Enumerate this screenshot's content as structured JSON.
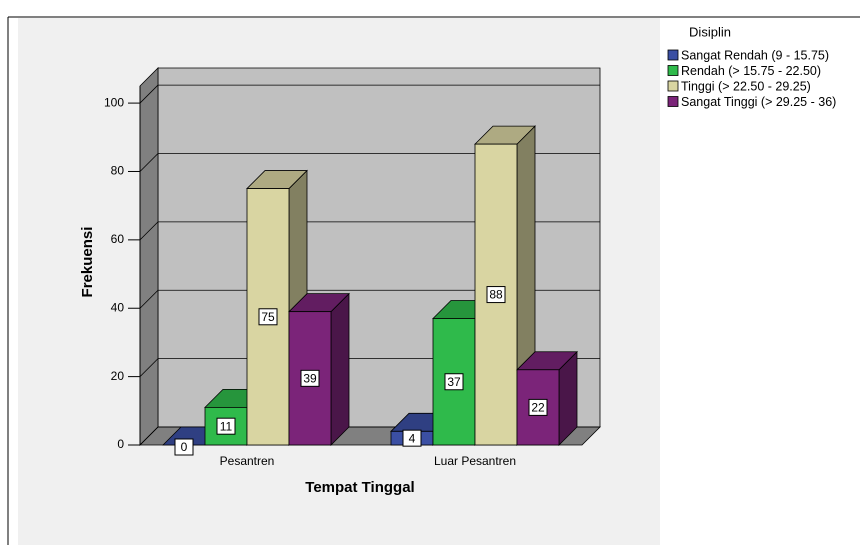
{
  "chart_data": {
    "type": "bar3d",
    "x_label": "Tempat Tinggal",
    "y_label": "Frekuensi",
    "legend_title": "Disiplin",
    "legend_position": "top-right",
    "categories": [
      "Pesantren",
      "Luar Pesantren"
    ],
    "series": [
      {
        "name": "Sangat Rendah (9 - 15.75)",
        "color": "#3b4fa3",
        "values": [
          0,
          4
        ]
      },
      {
        "name": "Rendah (> 15.75 - 22.50)",
        "color": "#2fba4b",
        "values": [
          11,
          37
        ]
      },
      {
        "name": "Tinggi (> 22.50 - 29.25)",
        "color": "#d9d5a2",
        "values": [
          75,
          88
        ]
      },
      {
        "name": "Sangat Tinggi (> 29.25 - 36)",
        "color": "#7b2479",
        "values": [
          39,
          22
        ]
      }
    ],
    "ylim": [
      0,
      105
    ],
    "yticks": [
      0,
      20,
      40,
      60,
      80,
      100
    ],
    "grid": true
  }
}
